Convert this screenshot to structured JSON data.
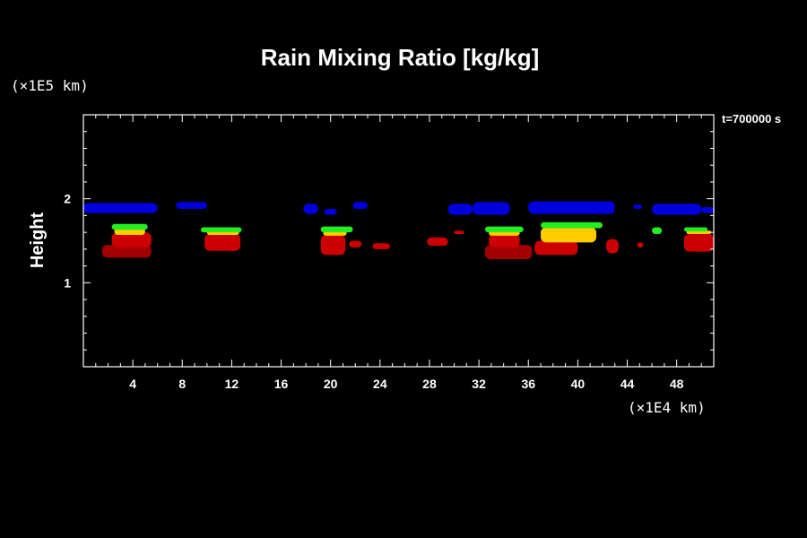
{
  "chart_data": {
    "type": "heatmap",
    "title": "Rain Mixing Ratio [kg/kg]",
    "ylabel": "Height",
    "xunit": "(×1E4 km)",
    "yunit": "(×1E5 km)",
    "time_label": "t=700000 s",
    "xlim": [
      0,
      51
    ],
    "ylim": [
      0,
      3
    ],
    "xticks": [
      4,
      8,
      12,
      16,
      20,
      24,
      28,
      32,
      36,
      40,
      44,
      48
    ],
    "yticks": [
      1,
      2
    ],
    "colors": {
      "low": "#0000dd",
      "mid": "#cc0000",
      "dark": "#a00000",
      "yellow": "#ffcc00",
      "green": "#22ee22"
    },
    "regions": [
      {
        "level": "low",
        "x0": 0.0,
        "x1": 6.0,
        "y0": 1.83,
        "y1": 1.95
      },
      {
        "level": "low",
        "x0": 7.5,
        "x1": 10.0,
        "y0": 1.88,
        "y1": 1.96
      },
      {
        "level": "low",
        "x0": 17.8,
        "x1": 19.0,
        "y0": 1.82,
        "y1": 1.94
      },
      {
        "level": "low",
        "x0": 19.5,
        "x1": 20.5,
        "y0": 1.81,
        "y1": 1.88
      },
      {
        "level": "low",
        "x0": 21.8,
        "x1": 23.0,
        "y0": 1.88,
        "y1": 1.96
      },
      {
        "level": "low",
        "x0": 29.5,
        "x1": 31.5,
        "y0": 1.81,
        "y1": 1.94
      },
      {
        "level": "low",
        "x0": 31.5,
        "x1": 34.5,
        "y0": 1.81,
        "y1": 1.96
      },
      {
        "level": "low",
        "x0": 36.0,
        "x1": 43.0,
        "y0": 1.82,
        "y1": 1.97
      },
      {
        "level": "low",
        "x0": 46.0,
        "x1": 50.0,
        "y0": 1.81,
        "y1": 1.94
      },
      {
        "level": "low",
        "x0": 50.0,
        "x1": 51.0,
        "y0": 1.83,
        "y1": 1.9
      },
      {
        "level": "low",
        "x0": 44.5,
        "x1": 45.2,
        "y0": 1.88,
        "y1": 1.93
      },
      {
        "level": "dark",
        "x0": 1.5,
        "x1": 5.5,
        "y0": 1.3,
        "y1": 1.45
      },
      {
        "level": "mid",
        "x0": 2.3,
        "x1": 5.5,
        "y0": 1.42,
        "y1": 1.6
      },
      {
        "level": "yellow",
        "x0": 2.5,
        "x1": 5.0,
        "y0": 1.57,
        "y1": 1.65
      },
      {
        "level": "green",
        "x0": 2.3,
        "x1": 5.2,
        "y0": 1.63,
        "y1": 1.7
      },
      {
        "level": "mid",
        "x0": 9.8,
        "x1": 12.7,
        "y0": 1.38,
        "y1": 1.58
      },
      {
        "level": "yellow",
        "x0": 10.0,
        "x1": 12.6,
        "y0": 1.57,
        "y1": 1.62
      },
      {
        "level": "green",
        "x0": 9.5,
        "x1": 12.8,
        "y0": 1.6,
        "y1": 1.66
      },
      {
        "level": "mid",
        "x0": 19.2,
        "x1": 21.2,
        "y0": 1.33,
        "y1": 1.57
      },
      {
        "level": "mid",
        "x0": 21.5,
        "x1": 22.5,
        "y0": 1.42,
        "y1": 1.5
      },
      {
        "level": "yellow",
        "x0": 19.4,
        "x1": 21.3,
        "y0": 1.56,
        "y1": 1.62
      },
      {
        "level": "green",
        "x0": 19.2,
        "x1": 21.8,
        "y0": 1.6,
        "y1": 1.67
      },
      {
        "level": "mid",
        "x0": 23.4,
        "x1": 24.8,
        "y0": 1.4,
        "y1": 1.47
      },
      {
        "level": "mid",
        "x0": 27.8,
        "x1": 29.5,
        "y0": 1.44,
        "y1": 1.54
      },
      {
        "level": "mid",
        "x0": 30.0,
        "x1": 30.8,
        "y0": 1.58,
        "y1": 1.62
      },
      {
        "level": "dark",
        "x0": 32.5,
        "x1": 36.3,
        "y0": 1.28,
        "y1": 1.45
      },
      {
        "level": "mid",
        "x0": 32.8,
        "x1": 35.3,
        "y0": 1.42,
        "y1": 1.58
      },
      {
        "level": "yellow",
        "x0": 32.8,
        "x1": 35.3,
        "y0": 1.56,
        "y1": 1.62
      },
      {
        "level": "green",
        "x0": 32.5,
        "x1": 35.6,
        "y0": 1.6,
        "y1": 1.67
      },
      {
        "level": "mid",
        "x0": 36.5,
        "x1": 40.0,
        "y0": 1.33,
        "y1": 1.5
      },
      {
        "level": "yellow",
        "x0": 37.0,
        "x1": 41.5,
        "y0": 1.48,
        "y1": 1.66
      },
      {
        "level": "green",
        "x0": 37.0,
        "x1": 42.0,
        "y0": 1.65,
        "y1": 1.72
      },
      {
        "level": "mid",
        "x0": 42.3,
        "x1": 43.3,
        "y0": 1.35,
        "y1": 1.52
      },
      {
        "level": "mid",
        "x0": 44.8,
        "x1": 45.3,
        "y0": 1.42,
        "y1": 1.48
      },
      {
        "level": "green",
        "x0": 46.0,
        "x1": 46.8,
        "y0": 1.58,
        "y1": 1.66
      },
      {
        "level": "mid",
        "x0": 48.6,
        "x1": 51.0,
        "y0": 1.37,
        "y1": 1.58
      },
      {
        "level": "yellow",
        "x0": 48.8,
        "x1": 50.8,
        "y0": 1.58,
        "y1": 1.62
      },
      {
        "level": "green",
        "x0": 48.6,
        "x1": 50.5,
        "y0": 1.61,
        "y1": 1.66
      }
    ]
  }
}
